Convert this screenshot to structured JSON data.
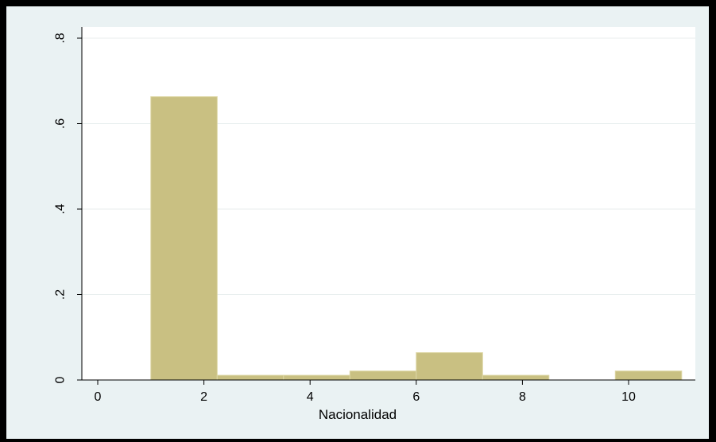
{
  "chart_data": {
    "type": "bar",
    "xlabel": "Nacionalidad",
    "ylabel": "",
    "xlim": [
      0,
      11
    ],
    "ylim": [
      0,
      0.8
    ],
    "x_ticks": [
      0,
      2,
      4,
      6,
      8,
      10
    ],
    "x_tick_labels": [
      "0",
      "2",
      "4",
      "6",
      "8",
      "10"
    ],
    "y_ticks": [
      0,
      0.2,
      0.4,
      0.6,
      0.8
    ],
    "y_tick_labels": [
      "0",
      ".2",
      ".4",
      ".6",
      ".8"
    ],
    "bins": [
      {
        "x0": 1.0,
        "x1": 2.25,
        "value": 0.663
      },
      {
        "x0": 2.25,
        "x1": 3.5,
        "value": 0.011
      },
      {
        "x0": 3.5,
        "x1": 4.75,
        "value": 0.011
      },
      {
        "x0": 4.75,
        "x1": 6.0,
        "value": 0.021
      },
      {
        "x0": 6.0,
        "x1": 7.25,
        "value": 0.064
      },
      {
        "x0": 7.25,
        "x1": 8.5,
        "value": 0.011
      },
      {
        "x0": 8.5,
        "x1": 9.75,
        "value": 0.0
      },
      {
        "x0": 9.75,
        "x1": 11.0,
        "value": 0.021
      }
    ],
    "grid": true,
    "bar_color": "#c9c082",
    "bar_edge_color": "#ddd6a4",
    "plot_background": "#ffffff",
    "outer_background": "#eaf2f3",
    "grid_color": "#e8eeee"
  }
}
